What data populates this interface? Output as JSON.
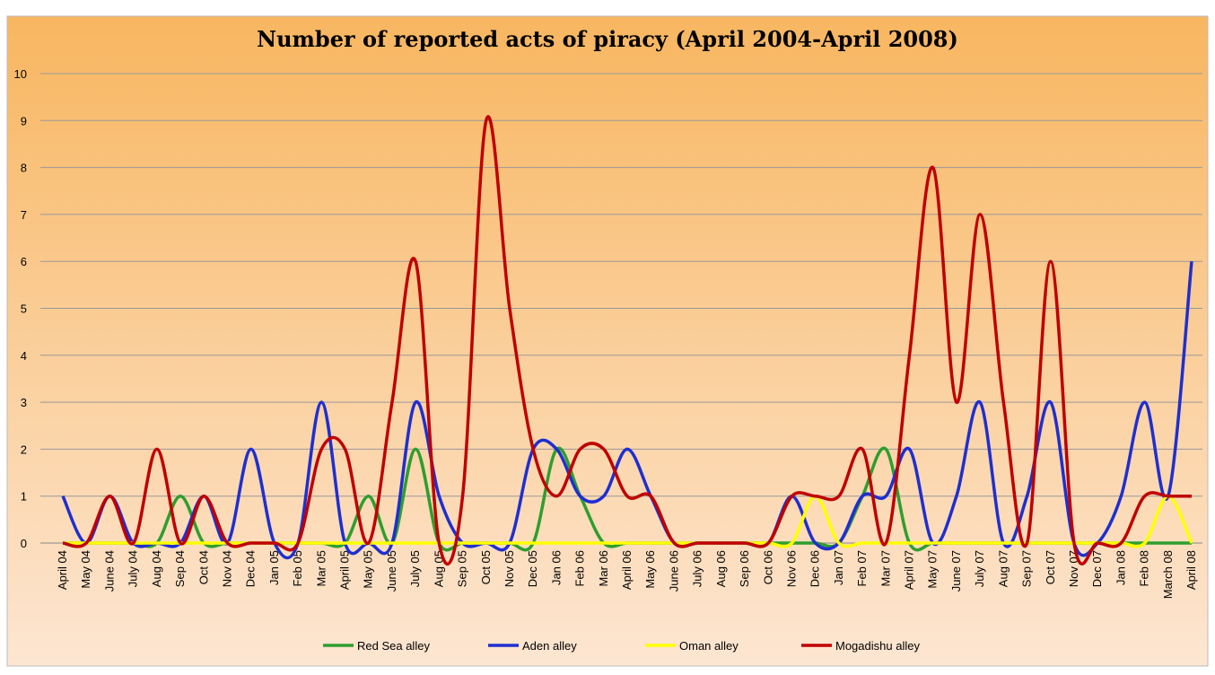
{
  "chart_data": {
    "type": "line",
    "title": "Number of reported acts of piracy (April 2004-April 2008)",
    "categories": [
      "April 04",
      "May 04",
      "June 04",
      "July 04",
      "Aug 04",
      "Sep 04",
      "Oct 04",
      "Nov 04",
      "Dec 04",
      "Jan 05",
      "Feb 05",
      "Mar 05",
      "April 05",
      "May 05",
      "June 05",
      "July 05",
      "Aug 05",
      "Sep 05",
      "Oct 05",
      "Nov 05",
      "Dec 05",
      "Jan 06",
      "Feb 06",
      "Mar 06",
      "April 06",
      "May 06",
      "June 06",
      "July 06",
      "Aug 06",
      "Sep 06",
      "Oct 06",
      "Nov 06",
      "Dec 06",
      "Jan 07",
      "Feb 07",
      "Mar 07",
      "April 07",
      "May 07",
      "June 07",
      "July 07",
      "Aug 07",
      "Sep 07",
      "Oct 07",
      "Nov 07",
      "Dec 07",
      "Jan 08",
      "Feb 08",
      "March 08",
      "April 08"
    ],
    "series": [
      {
        "name": "Red Sea alley",
        "color": "#2e9e2e",
        "values": [
          0,
          0,
          0,
          0,
          0,
          1,
          0,
          0,
          0,
          0,
          0,
          0,
          0,
          1,
          0,
          2,
          0,
          0,
          0,
          0,
          0,
          2,
          1,
          0,
          0,
          0,
          0,
          0,
          0,
          0,
          0,
          0,
          0,
          0,
          1,
          2,
          0,
          0,
          0,
          0,
          0,
          0,
          0,
          0,
          0,
          0,
          0,
          0,
          0
        ]
      },
      {
        "name": "Aden alley",
        "color": "#1f2fd0",
        "values": [
          1,
          0,
          1,
          0,
          0,
          0,
          1,
          0,
          2,
          0,
          0,
          3,
          0,
          0,
          0,
          3,
          1,
          0,
          0,
          0,
          2,
          2,
          1,
          1,
          2,
          1,
          0,
          0,
          0,
          0,
          0,
          1,
          0,
          0,
          1,
          1,
          2,
          0,
          1,
          3,
          0,
          1,
          3,
          0,
          0,
          1,
          3,
          1,
          6
        ]
      },
      {
        "name": "Oman alley",
        "color": "#ffff00",
        "values": [
          0,
          0,
          0,
          0,
          0,
          0,
          0,
          0,
          0,
          0,
          0,
          0,
          0,
          0,
          0,
          0,
          0,
          0,
          0,
          0,
          0,
          0,
          0,
          0,
          0,
          0,
          0,
          0,
          0,
          0,
          0,
          0,
          1,
          0,
          0,
          0,
          0,
          0,
          0,
          0,
          0,
          0,
          0,
          0,
          0,
          0,
          0,
          1,
          0
        ]
      },
      {
        "name": "Mogadishu alley",
        "color": "#c00000",
        "values": [
          0,
          0,
          1,
          0,
          2,
          0,
          1,
          0,
          0,
          0,
          0,
          2,
          2,
          0,
          3,
          6,
          0,
          1,
          9,
          5,
          2,
          1,
          2,
          2,
          1,
          1,
          0,
          0,
          0,
          0,
          0,
          1,
          1,
          1,
          2,
          0,
          4,
          8,
          3,
          7,
          3,
          0,
          6,
          0,
          0,
          0,
          1,
          1,
          1
        ]
      }
    ],
    "ylim": [
      0,
      10
    ],
    "yticks": [
      0,
      1,
      2,
      3,
      4,
      5,
      6,
      7,
      8,
      9,
      10
    ],
    "grid": true,
    "legend": "bottom"
  }
}
